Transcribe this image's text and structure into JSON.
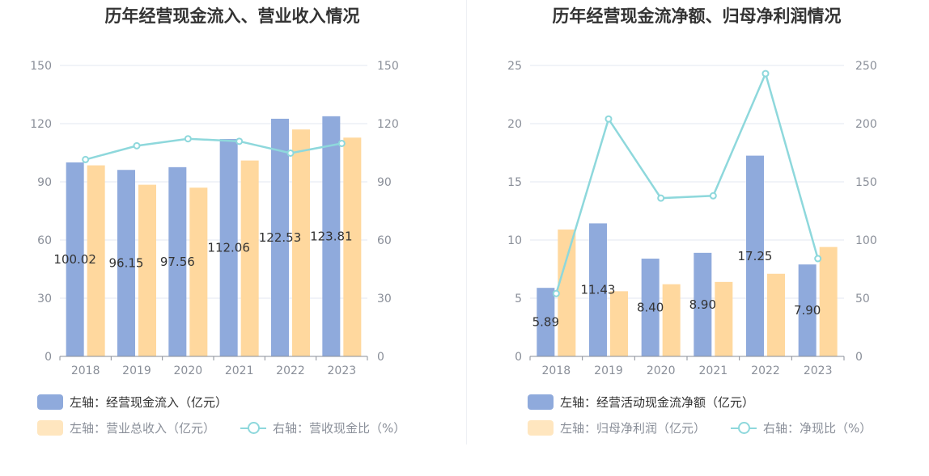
{
  "colors": {
    "bar_primary": "#8faadc",
    "bar_secondary": "#ffd89e",
    "line": "#8ed8dc",
    "grid": "#e3e7f1",
    "axis_text": "#8a8f99"
  },
  "chart_data": [
    {
      "type": "bar",
      "title": "历年经营现金流入、营业收入情况",
      "categories": [
        "2018",
        "2019",
        "2020",
        "2021",
        "2022",
        "2023"
      ],
      "left_axis": {
        "ticks": [
          "0",
          "30",
          "60",
          "90",
          "120",
          "150"
        ],
        "ylim": [
          0,
          150
        ]
      },
      "right_axis": {
        "ticks": [
          "0",
          "30",
          "60",
          "90",
          "120",
          "150"
        ],
        "ylim": [
          0,
          150
        ]
      },
      "series": [
        {
          "name": "左轴：经营现金流入（亿元）",
          "kind": "bar",
          "axis": "left",
          "values": [
            100.02,
            96.15,
            97.56,
            112.06,
            122.53,
            123.81
          ],
          "labels": [
            "100.02",
            "96.15",
            "97.56",
            "112.06",
            "122.53",
            "123.81"
          ]
        },
        {
          "name": "左轴：营业总收入（亿元）",
          "kind": "bar",
          "axis": "left",
          "values": [
            98.5,
            88.5,
            87.0,
            101.0,
            117.0,
            112.8
          ]
        },
        {
          "name": "右轴：营收现金比（%）",
          "kind": "line",
          "axis": "right",
          "values": [
            101.5,
            108.6,
            112.2,
            110.9,
            104.8,
            109.8
          ]
        }
      ],
      "grid": true,
      "legend": "bottom-left"
    },
    {
      "type": "bar",
      "title": "历年经营现金流净额、归母净利润情况",
      "categories": [
        "2018",
        "2019",
        "2020",
        "2021",
        "2022",
        "2023"
      ],
      "left_axis": {
        "ticks": [
          "0",
          "5",
          "10",
          "15",
          "20",
          "25"
        ],
        "ylim": [
          0,
          25
        ]
      },
      "right_axis": {
        "ticks": [
          "0",
          "50",
          "100",
          "150",
          "200",
          "250"
        ],
        "ylim": [
          0,
          250
        ]
      },
      "series": [
        {
          "name": "左轴：经营活动现金流净额（亿元）",
          "kind": "bar",
          "axis": "left",
          "values": [
            5.89,
            11.43,
            8.4,
            8.9,
            17.25,
            7.9
          ],
          "labels": [
            "5.89",
            "11.43",
            "8.40",
            "8.90",
            "17.25",
            "7.90"
          ]
        },
        {
          "name": "左轴：归母净利润（亿元）",
          "kind": "bar",
          "axis": "left",
          "values": [
            10.9,
            5.6,
            6.2,
            6.4,
            7.1,
            9.4
          ]
        },
        {
          "name": "右轴：净现比（%）",
          "kind": "line",
          "axis": "right",
          "values": [
            54,
            204,
            136,
            138,
            243,
            84
          ]
        }
      ],
      "grid": true,
      "legend": "bottom-left"
    }
  ]
}
